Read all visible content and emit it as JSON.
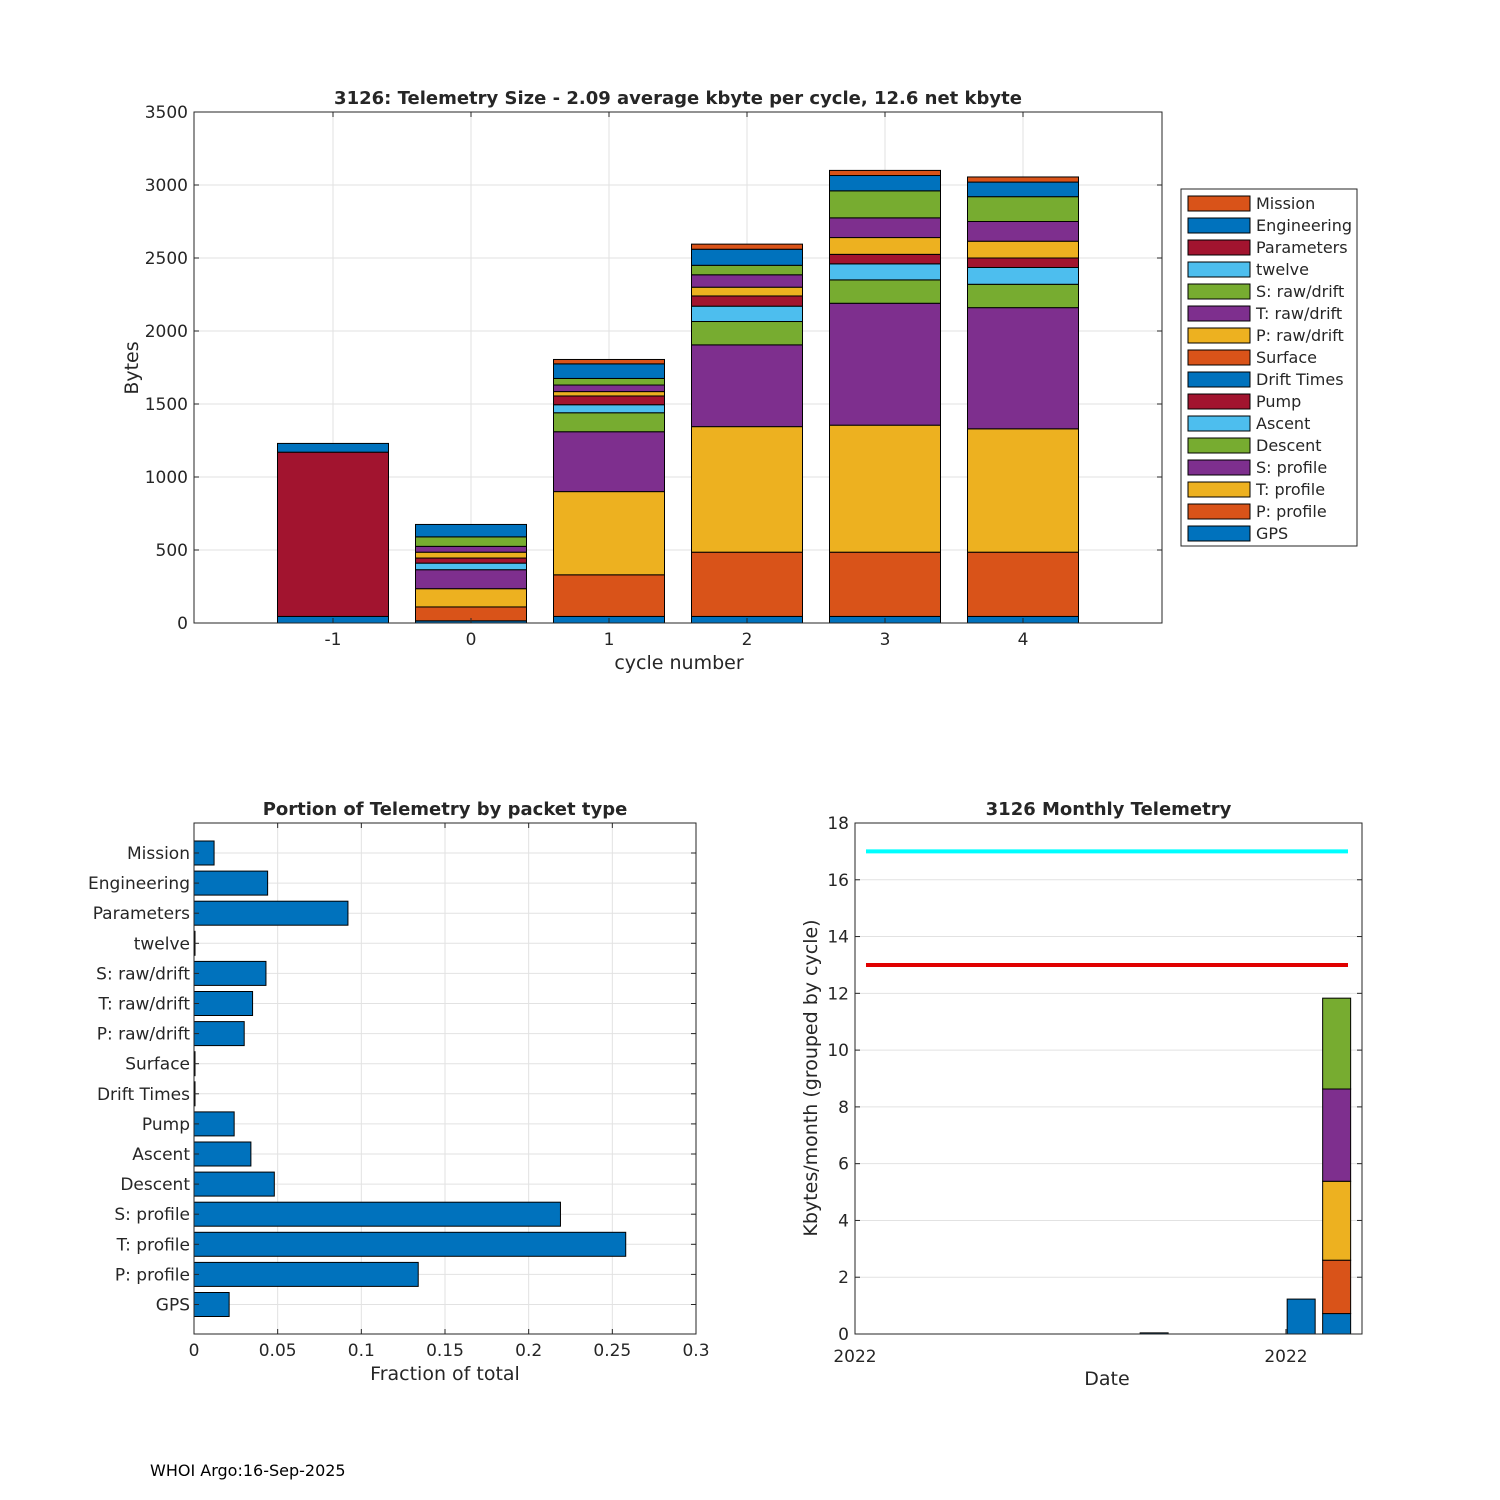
{
  "colors": {
    "blue": "#0072BD",
    "orange": "#D95319",
    "yellow": "#EDB120",
    "purple": "#7E2F8E",
    "green": "#77AC30",
    "cyan": "#4DBEEE",
    "red": "#A2142F"
  },
  "chart_data": [
    {
      "type": "bar",
      "stacked": true,
      "title": "3126: Telemetry Size - 2.09 average kbyte per cycle,   12.6 net kbyte",
      "xlabel": "cycle number",
      "ylabel": "Bytes",
      "categories": [
        "-1",
        "0",
        "1",
        "2",
        "3",
        "4"
      ],
      "ylim": [
        0,
        3500
      ],
      "yticks": [
        0,
        500,
        1000,
        1500,
        2000,
        2500,
        3000,
        3500
      ],
      "grid": true,
      "legend_position": "outside-right",
      "series": [
        {
          "name": "GPS",
          "color": "#0072BD",
          "values": [
            45,
            15,
            45,
            45,
            45,
            45
          ]
        },
        {
          "name": "P: profile",
          "color": "#D95319",
          "values": [
            0,
            95,
            285,
            440,
            440,
            440
          ]
        },
        {
          "name": "T: profile",
          "color": "#EDB120",
          "values": [
            0,
            125,
            570,
            860,
            870,
            845
          ]
        },
        {
          "name": "S: profile",
          "color": "#7E2F8E",
          "values": [
            0,
            130,
            410,
            560,
            835,
            830
          ]
        },
        {
          "name": "Descent",
          "color": "#77AC30",
          "values": [
            0,
            0,
            130,
            160,
            160,
            160
          ]
        },
        {
          "name": "Ascent",
          "color": "#4DBEEE",
          "values": [
            0,
            45,
            55,
            105,
            110,
            115
          ]
        },
        {
          "name": "Pump",
          "color": "#A2142F",
          "values": [
            1125,
            35,
            60,
            70,
            65,
            65
          ]
        },
        {
          "name": "Drift Times",
          "color": "#0072BD",
          "values": [
            0,
            0,
            0,
            0,
            0,
            0
          ]
        },
        {
          "name": "Surface",
          "color": "#D95319",
          "values": [
            0,
            0,
            0,
            0,
            0,
            0
          ]
        },
        {
          "name": "P: raw/drift",
          "color": "#EDB120",
          "values": [
            0,
            40,
            30,
            60,
            115,
            115
          ]
        },
        {
          "name": "T: raw/drift",
          "color": "#7E2F8E",
          "values": [
            0,
            40,
            45,
            85,
            135,
            135
          ]
        },
        {
          "name": "S: raw/drift",
          "color": "#77AC30",
          "values": [
            0,
            65,
            45,
            65,
            185,
            170
          ]
        },
        {
          "name": "twelve",
          "color": "#4DBEEE",
          "values": [
            0,
            0,
            0,
            0,
            0,
            0
          ]
        },
        {
          "name": "Parameters",
          "color": "#A2142F",
          "values": [
            0,
            0,
            0,
            0,
            0,
            0
          ]
        },
        {
          "name": "Engineering",
          "color": "#0072BD",
          "values": [
            60,
            85,
            100,
            110,
            105,
            100
          ]
        },
        {
          "name": "Mission",
          "color": "#D95319",
          "values": [
            0,
            0,
            30,
            35,
            35,
            35
          ]
        }
      ],
      "legend": [
        "Mission",
        "Engineering",
        "Parameters",
        "twelve",
        "S: raw/drift",
        "T: raw/drift",
        "P: raw/drift",
        "Surface",
        "Drift Times",
        "Pump",
        "Ascent",
        "Descent",
        "S: profile",
        "T: profile",
        "P: profile",
        "GPS"
      ]
    },
    {
      "type": "bar",
      "orientation": "horizontal",
      "title": "Portion of Telemetry by packet type",
      "xlabel": "Fraction of total",
      "ylabel": "",
      "xlim": [
        0,
        0.3
      ],
      "xticks": [
        "0",
        "0.05",
        "0.1",
        "0.15",
        "0.2",
        "0.25",
        "0.3"
      ],
      "grid": true,
      "categories": [
        "Mission",
        "Engineering",
        "Parameters",
        "twelve",
        "S: raw/drift",
        "T: raw/drift",
        "P: raw/drift",
        "Surface",
        "Drift Times",
        "Pump",
        "Ascent",
        "Descent",
        "S: profile",
        "T: profile",
        "P: profile",
        "GPS"
      ],
      "values": [
        0.012,
        0.044,
        0.092,
        0.0005,
        0.043,
        0.035,
        0.03,
        0.0005,
        0.0005,
        0.024,
        0.034,
        0.048,
        0.219,
        0.258,
        0.134,
        0.021
      ]
    },
    {
      "type": "bar",
      "stacked": true,
      "title": "3126 Monthly Telemetry",
      "xlabel": "Date",
      "ylabel": "Kbytes/month (grouped by cycle)",
      "ylim": [
        0,
        18
      ],
      "yticks": [
        0,
        2,
        4,
        6,
        8,
        10,
        12,
        14,
        16,
        18
      ],
      "xtick_labels": [
        "2022",
        "2022"
      ],
      "grid": true,
      "reference_lines": [
        {
          "value": 17,
          "color": "#00FFFF"
        },
        {
          "value": 13,
          "color": "#E00000"
        }
      ],
      "bars": [
        {
          "position": 0.59,
          "segments": [
            {
              "value": 0.04,
              "color": "#0072BD"
            }
          ]
        },
        {
          "position": 0.88,
          "segments": [
            {
              "value": 1.23,
              "color": "#0072BD"
            }
          ]
        },
        {
          "position": 0.95,
          "segments": [
            {
              "value": 0.72,
              "color": "#0072BD"
            },
            {
              "value": 1.88,
              "color": "#D95319"
            },
            {
              "value": 2.78,
              "color": "#EDB120"
            },
            {
              "value": 3.25,
              "color": "#7E2F8E"
            },
            {
              "value": 3.2,
              "color": "#77AC30"
            }
          ]
        }
      ]
    }
  ],
  "footer": "WHOI Argo:16-Sep-2025"
}
